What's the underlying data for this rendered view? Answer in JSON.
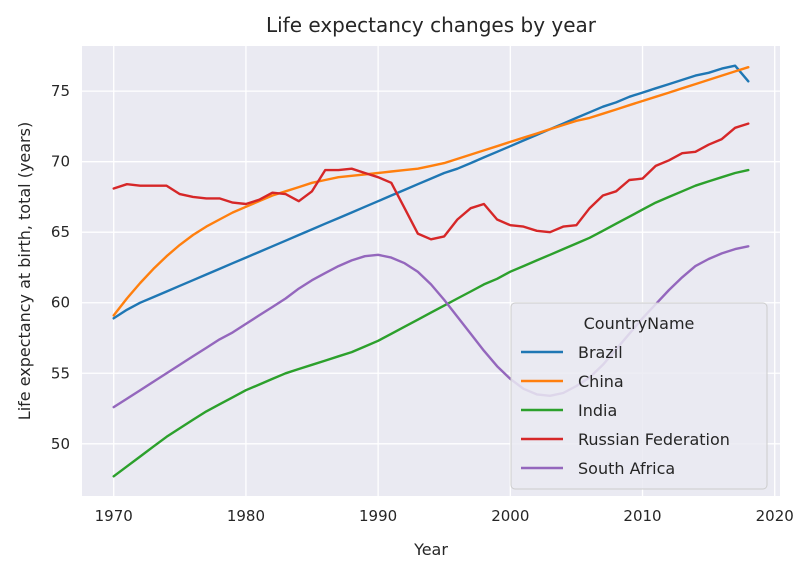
{
  "chart_data": {
    "type": "line",
    "title": "Life expectancy changes by year",
    "xlabel": "Year",
    "ylabel": "Life expectancy at birth, total (years)",
    "xlim": [
      1967.6,
      2020.4
    ],
    "ylim": [
      46.3,
      78.2
    ],
    "xticks": [
      1970,
      1980,
      1990,
      2000,
      2010,
      2020
    ],
    "yticks": [
      50,
      55,
      60,
      65,
      70,
      75
    ],
    "grid": true,
    "legend": {
      "title": "CountryName",
      "placement": "lower-right"
    },
    "x": [
      1970,
      1971,
      1972,
      1973,
      1974,
      1975,
      1976,
      1977,
      1978,
      1979,
      1980,
      1981,
      1982,
      1983,
      1984,
      1985,
      1986,
      1987,
      1988,
      1989,
      1990,
      1991,
      1992,
      1993,
      1994,
      1995,
      1996,
      1997,
      1998,
      1999,
      2000,
      2001,
      2002,
      2003,
      2004,
      2005,
      2006,
      2007,
      2008,
      2009,
      2010,
      2011,
      2012,
      2013,
      2014,
      2015,
      2016,
      2017,
      2018
    ],
    "series": [
      {
        "name": "Brazil",
        "color": "#1f77b4",
        "values": [
          58.9,
          59.5,
          60.0,
          60.4,
          60.8,
          61.2,
          61.6,
          62.0,
          62.4,
          62.8,
          63.2,
          63.6,
          64.0,
          64.4,
          64.8,
          65.2,
          65.6,
          66.0,
          66.4,
          66.8,
          67.2,
          67.6,
          68.0,
          68.4,
          68.8,
          69.2,
          69.5,
          69.9,
          70.3,
          70.7,
          71.1,
          71.5,
          71.9,
          72.3,
          72.7,
          73.1,
          73.5,
          73.9,
          74.2,
          74.6,
          74.9,
          75.2,
          75.5,
          75.8,
          76.1,
          76.3,
          76.6,
          76.8,
          75.7
        ]
      },
      {
        "name": "China",
        "color": "#ff7f0e",
        "values": [
          59.1,
          60.3,
          61.4,
          62.4,
          63.3,
          64.1,
          64.8,
          65.4,
          65.9,
          66.4,
          66.8,
          67.2,
          67.6,
          67.9,
          68.2,
          68.5,
          68.7,
          68.9,
          69.0,
          69.1,
          69.2,
          69.3,
          69.4,
          69.5,
          69.7,
          69.9,
          70.2,
          70.5,
          70.8,
          71.1,
          71.4,
          71.7,
          72.0,
          72.3,
          72.6,
          72.9,
          73.1,
          73.4,
          73.7,
          74.0,
          74.3,
          74.6,
          74.9,
          75.2,
          75.5,
          75.8,
          76.1,
          76.4,
          76.7
        ]
      },
      {
        "name": "India",
        "color": "#2ca02c",
        "values": [
          47.7,
          48.4,
          49.1,
          49.8,
          50.5,
          51.1,
          51.7,
          52.3,
          52.8,
          53.3,
          53.8,
          54.2,
          54.6,
          55.0,
          55.3,
          55.6,
          55.9,
          56.2,
          56.5,
          56.9,
          57.3,
          57.8,
          58.3,
          58.8,
          59.3,
          59.8,
          60.3,
          60.8,
          61.3,
          61.7,
          62.2,
          62.6,
          63.0,
          63.4,
          63.8,
          64.2,
          64.6,
          65.1,
          65.6,
          66.1,
          66.6,
          67.1,
          67.5,
          67.9,
          68.3,
          68.6,
          68.9,
          69.2,
          69.4
        ]
      },
      {
        "name": "Russian Federation",
        "color": "#d62728",
        "values": [
          68.1,
          68.4,
          68.3,
          68.3,
          68.3,
          67.7,
          67.5,
          67.4,
          67.4,
          67.1,
          67.0,
          67.3,
          67.8,
          67.7,
          67.2,
          67.9,
          69.4,
          69.4,
          69.5,
          69.2,
          68.9,
          68.5,
          66.7,
          64.9,
          64.5,
          64.7,
          65.9,
          66.7,
          67.0,
          65.9,
          65.5,
          65.4,
          65.1,
          65.0,
          65.4,
          65.5,
          66.7,
          67.6,
          67.9,
          68.7,
          68.8,
          69.7,
          70.1,
          70.6,
          70.7,
          71.2,
          71.6,
          72.4,
          72.7
        ]
      },
      {
        "name": "South Africa",
        "color": "#9467bd",
        "values": [
          52.6,
          53.2,
          53.8,
          54.4,
          55.0,
          55.6,
          56.2,
          56.8,
          57.4,
          57.9,
          58.5,
          59.1,
          59.7,
          60.3,
          61.0,
          61.6,
          62.1,
          62.6,
          63.0,
          63.3,
          63.4,
          63.2,
          62.8,
          62.2,
          61.3,
          60.2,
          59.0,
          57.8,
          56.6,
          55.5,
          54.6,
          53.9,
          53.5,
          53.4,
          53.6,
          54.1,
          54.7,
          55.6,
          56.7,
          57.8,
          58.9,
          59.9,
          60.9,
          61.8,
          62.6,
          63.1,
          63.5,
          63.8,
          64.0
        ]
      }
    ]
  }
}
